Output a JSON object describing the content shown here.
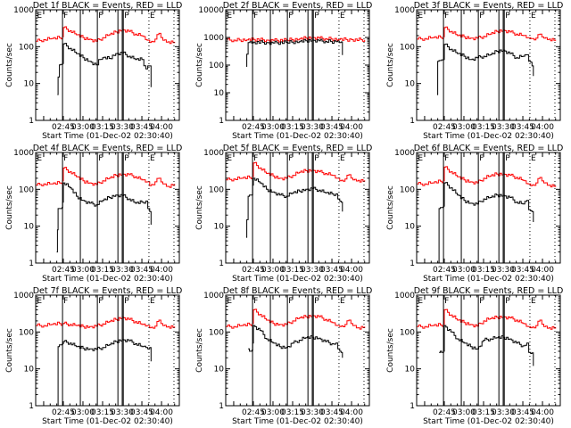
{
  "page": {
    "layout": "3x3 grid of detector light curves"
  },
  "common": {
    "xlabel": "Start Time (01-Dec-02 02:30:40)",
    "ylabel": "Counts/sec",
    "xticks": [
      "02:45",
      "03:00",
      "03:15",
      "03:30",
      "03:45",
      "04:00"
    ],
    "xtick_minutes": [
      45,
      60,
      75,
      90,
      105,
      120
    ],
    "xlim_minutes_after_0200": [
      23.9,
      133.6
    ],
    "event_lines_solid": [
      44.4,
      58.0,
      71.0,
      86.7,
      90.0,
      90.8
    ],
    "event_lines_dotted": [
      110.4,
      129.5
    ],
    "region_labels": [
      {
        "label": "E",
        "at": 24.5
      },
      {
        "label": "F",
        "at": 44.8
      },
      {
        "label": "F",
        "at": 71.4
      },
      {
        "label": "P",
        "at": 91.2
      },
      {
        "label": "E",
        "at": 110.8
      }
    ],
    "colors": {
      "events": "#000000",
      "lld": "#ff0000"
    }
  },
  "chart_data": [
    {
      "type": "line",
      "title": "Det 1f BLACK = Events, RED = LLD",
      "ylim": [
        1,
        1000
      ],
      "yscale": "log",
      "yticks": [
        "1",
        "10",
        "100",
        "1000"
      ],
      "series": [
        {
          "name": "LLD",
          "color": "#ff0000",
          "x": [
            24,
            30,
            36,
            42,
            44.5,
            45,
            50,
            55,
            60,
            65,
            70,
            75,
            80,
            85,
            90,
            95,
            100,
            105,
            109,
            111,
            115,
            118,
            121,
            125,
            130
          ],
          "y": [
            140,
            155,
            165,
            175,
            185,
            330,
            270,
            210,
            175,
            160,
            140,
            175,
            210,
            250,
            290,
            260,
            220,
            195,
            150,
            130,
            160,
            230,
            150,
            135,
            135
          ]
        },
        {
          "name": "Events",
          "color": "#000000",
          "x": [
            40.5,
            41,
            42,
            43,
            44.5,
            45,
            50,
            55,
            60,
            65,
            70,
            72,
            75,
            80,
            85,
            90,
            95,
            100,
            105,
            108,
            109.5,
            111,
            112
          ],
          "y": [
            5,
            15,
            32,
            33,
            35,
            120,
            90,
            65,
            50,
            40,
            32,
            45,
            50,
            48,
            65,
            68,
            55,
            45,
            45,
            25,
            30,
            30,
            8
          ]
        }
      ]
    },
    {
      "type": "line",
      "title": "Det 2f BLACK = Events, RED = LLD",
      "ylim": [
        1,
        10000
      ],
      "yscale": "log",
      "yticks": [
        "1",
        "10",
        "100",
        "1000",
        "10000"
      ],
      "series": [
        {
          "name": "LLD",
          "color": "#ff0000",
          "x": [
            24,
            30,
            40,
            45,
            55,
            60,
            70,
            80,
            85,
            90,
            95,
            100,
            110,
            120,
            130
          ],
          "y": [
            800,
            800,
            820,
            850,
            800,
            780,
            800,
            880,
            950,
            1000,
            950,
            900,
            850,
            830,
            820
          ]
        },
        {
          "name": "Events",
          "color": "#000000",
          "x": [
            39.5,
            40,
            41,
            45,
            55,
            60,
            70,
            80,
            85,
            90,
            95,
            100,
            108,
            112,
            113
          ],
          "y": [
            90,
            250,
            650,
            680,
            650,
            630,
            660,
            700,
            760,
            800,
            760,
            720,
            700,
            690,
            230
          ]
        }
      ]
    },
    {
      "type": "line",
      "title": "Det 3f BLACK = Events, RED = LLD",
      "ylim": [
        1,
        1000
      ],
      "yscale": "log",
      "yticks": [
        "1",
        "10",
        "100",
        "1000"
      ],
      "series": [
        {
          "name": "LLD",
          "color": "#ff0000",
          "x": [
            24,
            30,
            36,
            42,
            44.5,
            45,
            50,
            55,
            60,
            65,
            70,
            75,
            80,
            85,
            90,
            95,
            100,
            105,
            109,
            111,
            115,
            118,
            121,
            125,
            130
          ],
          "y": [
            160,
            165,
            175,
            180,
            185,
            330,
            260,
            200,
            185,
            170,
            170,
            190,
            220,
            260,
            280,
            250,
            220,
            200,
            175,
            165,
            170,
            220,
            170,
            160,
            155
          ]
        },
        {
          "name": "Events",
          "color": "#000000",
          "x": [
            39.5,
            40,
            41,
            43,
            44.5,
            45,
            50,
            55,
            60,
            65,
            70,
            75,
            80,
            85,
            90,
            95,
            100,
            105,
            108,
            109.5,
            111,
            112,
            113
          ],
          "y": [
            5,
            40,
            42,
            44,
            45,
            115,
            85,
            65,
            55,
            45,
            50,
            55,
            60,
            75,
            80,
            65,
            50,
            55,
            60,
            40,
            38,
            30,
            16
          ]
        }
      ]
    },
    {
      "type": "line",
      "title": "Det 4f BLACK = Events, RED = LLD",
      "ylim": [
        1,
        1000
      ],
      "yscale": "log",
      "yticks": [
        "1",
        "10",
        "100",
        "1000"
      ],
      "series": [
        {
          "name": "LLD",
          "color": "#ff0000",
          "x": [
            24,
            30,
            36,
            42,
            44.5,
            45,
            50,
            55,
            60,
            65,
            70,
            75,
            80,
            85,
            90,
            95,
            100,
            105,
            109,
            111,
            115,
            118,
            121,
            125,
            130
          ],
          "y": [
            130,
            140,
            140,
            150,
            170,
            380,
            300,
            220,
            170,
            150,
            135,
            170,
            200,
            240,
            260,
            250,
            220,
            180,
            160,
            125,
            160,
            200,
            140,
            120,
            140
          ]
        },
        {
          "name": "Events",
          "color": "#000000",
          "x": [
            40,
            40.5,
            41,
            42,
            44,
            44.5,
            45,
            50,
            55,
            60,
            65,
            70,
            75,
            80,
            85,
            90,
            95,
            100,
            105,
            108,
            109.5,
            111,
            112
          ],
          "y": [
            2,
            8,
            30,
            30,
            32,
            45,
            150,
            110,
            65,
            50,
            42,
            38,
            50,
            60,
            70,
            68,
            55,
            42,
            45,
            48,
            30,
            25,
            11
          ]
        }
      ]
    },
    {
      "type": "line",
      "title": "Det 5f BLACK = Events, RED = LLD",
      "ylim": [
        1,
        1000
      ],
      "yscale": "log",
      "yticks": [
        "1",
        "10",
        "100",
        "1000"
      ],
      "series": [
        {
          "name": "LLD",
          "color": "#ff0000",
          "x": [
            24,
            30,
            36,
            42,
            44.5,
            45,
            50,
            55,
            60,
            65,
            70,
            75,
            80,
            85,
            90,
            95,
            100,
            105,
            109,
            111,
            115,
            118,
            121,
            125,
            130
          ],
          "y": [
            180,
            190,
            200,
            210,
            220,
            520,
            380,
            270,
            230,
            200,
            200,
            240,
            290,
            320,
            330,
            300,
            270,
            240,
            200,
            170,
            190,
            250,
            180,
            175,
            175
          ]
        },
        {
          "name": "Events",
          "color": "#000000",
          "x": [
            39.5,
            40,
            41,
            42,
            44,
            44.5,
            45,
            50,
            55,
            60,
            65,
            70,
            75,
            80,
            85,
            90,
            95,
            100,
            105,
            108,
            109.5,
            111,
            112,
            113
          ],
          "y": [
            5,
            15,
            65,
            70,
            70,
            130,
            200,
            150,
            100,
            85,
            70,
            65,
            80,
            90,
            100,
            105,
            95,
            80,
            75,
            75,
            55,
            48,
            45,
            25
          ]
        }
      ]
    },
    {
      "type": "line",
      "title": "Det 6f BLACK = Events, RED = LLD",
      "ylim": [
        1,
        1000
      ],
      "yscale": "log",
      "yticks": [
        "1",
        "10",
        "100",
        "1000"
      ],
      "series": [
        {
          "name": "LLD",
          "color": "#ff0000",
          "x": [
            24,
            30,
            36,
            42,
            44.5,
            45,
            50,
            55,
            60,
            65,
            70,
            75,
            80,
            85,
            90,
            95,
            100,
            105,
            109,
            111,
            115,
            118,
            121,
            125,
            130
          ],
          "y": [
            140,
            140,
            150,
            165,
            170,
            400,
            300,
            220,
            180,
            160,
            150,
            200,
            230,
            260,
            260,
            240,
            210,
            175,
            140,
            125,
            150,
            210,
            150,
            130,
            125
          ]
        },
        {
          "name": "Events",
          "color": "#000000",
          "x": [
            40.5,
            41,
            42,
            44,
            44.5,
            45,
            50,
            55,
            60,
            65,
            70,
            75,
            80,
            85,
            90,
            95,
            100,
            105,
            108,
            109.5,
            111,
            112,
            113
          ],
          "y": [
            1,
            30,
            32,
            33,
            35,
            150,
            110,
            70,
            50,
            42,
            40,
            55,
            60,
            70,
            68,
            60,
            45,
            40,
            50,
            28,
            26,
            25,
            13
          ]
        }
      ]
    },
    {
      "type": "line",
      "title": "Det 7f BLACK = Events, RED = LLD",
      "ylim": [
        1,
        1000
      ],
      "yscale": "log",
      "yticks": [
        "1",
        "10",
        "100",
        "1000"
      ],
      "series": [
        {
          "name": "LLD",
          "color": "#ff0000",
          "x": [
            24,
            30,
            36,
            42,
            44.5,
            45,
            50,
            55,
            60,
            65,
            70,
            75,
            80,
            85,
            90,
            95,
            100,
            105,
            109,
            111,
            115,
            118,
            121,
            125,
            130
          ],
          "y": [
            150,
            150,
            160,
            170,
            165,
            170,
            160,
            150,
            140,
            140,
            145,
            165,
            190,
            220,
            250,
            220,
            190,
            160,
            150,
            130,
            145,
            210,
            150,
            140,
            140
          ]
        },
        {
          "name": "Events",
          "color": "#000000",
          "x": [
            40.5,
            41,
            42,
            44,
            44.5,
            45,
            50,
            55,
            60,
            65,
            70,
            75,
            80,
            85,
            90,
            95,
            100,
            105,
            108,
            109.5,
            111,
            112
          ],
          "y": [
            1,
            40,
            45,
            46,
            48,
            55,
            50,
            40,
            36,
            35,
            34,
            38,
            45,
            55,
            62,
            58,
            48,
            40,
            38,
            35,
            38,
            16
          ]
        }
      ]
    },
    {
      "type": "line",
      "title": "Det 8f BLACK = Events, RED = LLD",
      "ylim": [
        1,
        1000
      ],
      "yscale": "log",
      "yticks": [
        "1",
        "10",
        "100",
        "1000"
      ],
      "series": [
        {
          "name": "LLD",
          "color": "#ff0000",
          "x": [
            24,
            30,
            36,
            42,
            44.5,
            45,
            50,
            55,
            60,
            65,
            70,
            75,
            80,
            85,
            90,
            95,
            100,
            105,
            109,
            111,
            115,
            118,
            121,
            125,
            130
          ],
          "y": [
            140,
            140,
            150,
            160,
            170,
            400,
            300,
            210,
            170,
            160,
            160,
            200,
            240,
            260,
            280,
            260,
            220,
            180,
            150,
            140,
            160,
            210,
            150,
            130,
            140
          ]
        },
        {
          "name": "Events",
          "color": "#000000",
          "x": [
            41,
            42,
            44,
            44.5,
            45,
            50,
            55,
            60,
            65,
            70,
            75,
            80,
            85,
            90,
            95,
            100,
            105,
            108,
            109.5,
            111,
            112,
            113
          ],
          "y": [
            35,
            30,
            32,
            50,
            150,
            110,
            65,
            50,
            40,
            38,
            50,
            60,
            70,
            72,
            68,
            55,
            48,
            50,
            35,
            30,
            28,
            20
          ]
        }
      ]
    },
    {
      "type": "line",
      "title": "Det 9f BLACK = Events, RED = LLD",
      "ylim": [
        1,
        1000
      ],
      "yscale": "log",
      "yticks": [
        "1",
        "10",
        "100",
        "1000"
      ],
      "series": [
        {
          "name": "LLD",
          "color": "#ff0000",
          "x": [
            24,
            30,
            36,
            42,
            44.5,
            45,
            50,
            55,
            60,
            65,
            70,
            75,
            80,
            85,
            90,
            95,
            100,
            105,
            109,
            111,
            115,
            118,
            121,
            125,
            130
          ],
          "y": [
            140,
            140,
            150,
            155,
            160,
            400,
            290,
            210,
            180,
            160,
            145,
            200,
            230,
            250,
            260,
            240,
            210,
            170,
            140,
            130,
            150,
            210,
            140,
            130,
            135
          ]
        },
        {
          "name": "Events",
          "color": "#000000",
          "x": [
            41,
            42,
            43,
            44.5,
            45,
            50,
            55,
            60,
            65,
            70,
            75,
            80,
            85,
            90,
            95,
            100,
            105,
            108,
            109.5,
            111,
            112,
            113
          ],
          "y": [
            28,
            30,
            28,
            30,
            150,
            100,
            65,
            50,
            40,
            35,
            60,
            65,
            70,
            72,
            65,
            50,
            42,
            50,
            28,
            26,
            27,
            12
          ]
        }
      ]
    }
  ]
}
